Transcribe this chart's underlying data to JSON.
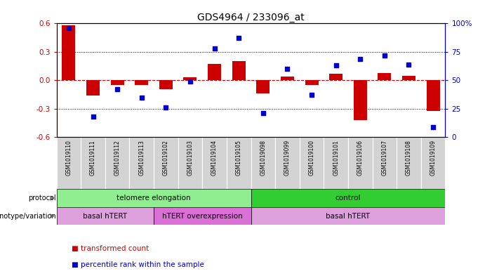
{
  "title": "GDS4964 / 233096_at",
  "samples": [
    "GSM1019110",
    "GSM1019111",
    "GSM1019112",
    "GSM1019113",
    "GSM1019102",
    "GSM1019103",
    "GSM1019104",
    "GSM1019105",
    "GSM1019098",
    "GSM1019099",
    "GSM1019100",
    "GSM1019101",
    "GSM1019106",
    "GSM1019107",
    "GSM1019108",
    "GSM1019109"
  ],
  "bar_values": [
    0.58,
    -0.16,
    -0.05,
    -0.05,
    -0.09,
    0.03,
    0.17,
    0.2,
    -0.14,
    0.04,
    -0.05,
    0.07,
    -0.42,
    0.08,
    0.05,
    -0.32
  ],
  "dot_values": [
    96,
    18,
    42,
    35,
    26,
    49,
    78,
    87,
    21,
    60,
    37,
    63,
    69,
    72,
    64,
    9
  ],
  "protocol_groups": [
    {
      "label": "telomere elongation",
      "start": 0,
      "end": 8,
      "color": "#90EE90"
    },
    {
      "label": "control",
      "start": 8,
      "end": 16,
      "color": "#32CD32"
    }
  ],
  "genotype_groups": [
    {
      "label": "basal hTERT",
      "start": 0,
      "end": 4,
      "color": "#DDA0DD"
    },
    {
      "label": "hTERT overexpression",
      "start": 4,
      "end": 8,
      "color": "#DA70D6"
    },
    {
      "label": "basal hTERT",
      "start": 8,
      "end": 16,
      "color": "#DDA0DD"
    }
  ],
  "bar_color": "#CC0000",
  "dot_color": "#0000CC",
  "zero_line_color": "#CC0000",
  "grid_color": "#000000",
  "ylim_left": [
    -0.6,
    0.6
  ],
  "yticks_left": [
    -0.6,
    -0.3,
    0.0,
    0.3,
    0.6
  ],
  "ylim_right": [
    0,
    100
  ],
  "yticks_right": [
    0,
    25,
    50,
    75,
    100
  ],
  "ytick_labels_right": [
    "0",
    "25",
    "50",
    "75",
    "100%"
  ],
  "bg_color": "#FFFFFF",
  "sample_bg_color": "#D3D3D3",
  "protocol_label": "protocol",
  "genotype_label": "genotype/variation",
  "legend_red": "transformed count",
  "legend_blue": "percentile rank within the sample"
}
